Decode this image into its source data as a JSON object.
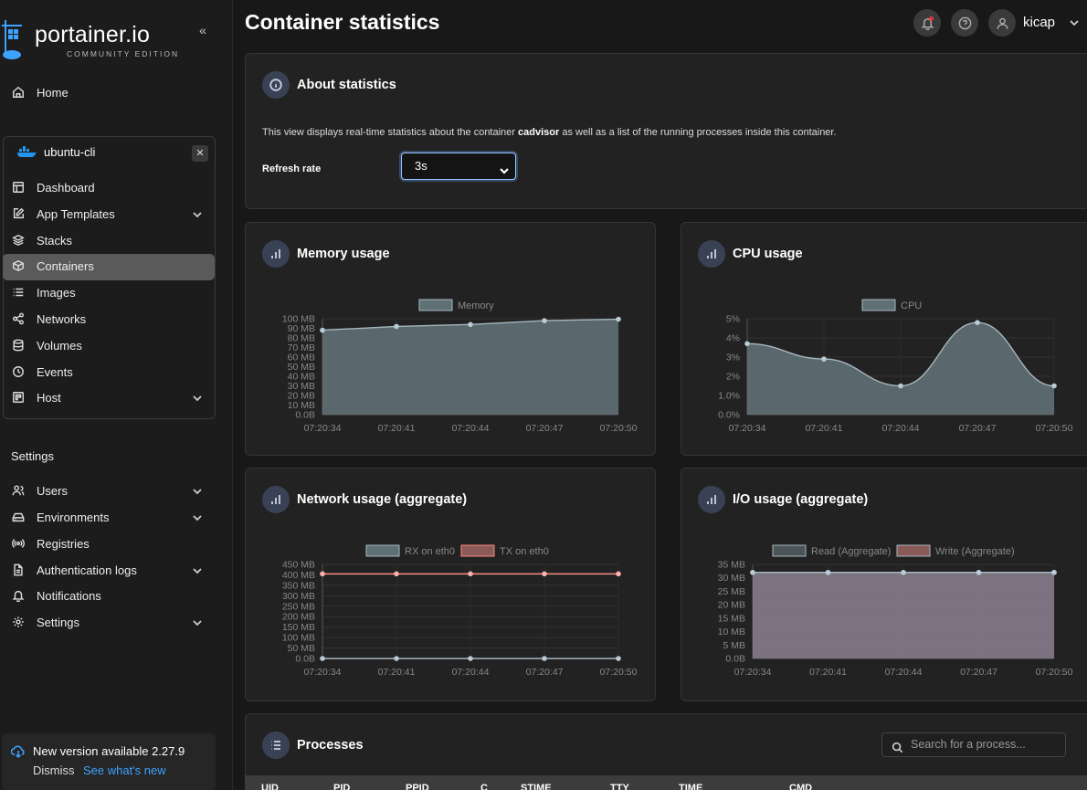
{
  "sidebar": {
    "logo_text": "portainer.io",
    "logo_sub": "COMMUNITY EDITION",
    "home_label": "Home",
    "env_name": "ubuntu-cli",
    "env_items": [
      {
        "label": "Dashboard",
        "icon": "dashboard-icon"
      },
      {
        "label": "App Templates",
        "icon": "edit-icon",
        "expandable": true
      },
      {
        "label": "Stacks",
        "icon": "layers-icon"
      },
      {
        "label": "Containers",
        "icon": "cube-icon",
        "active": true
      },
      {
        "label": "Images",
        "icon": "list-icon"
      },
      {
        "label": "Networks",
        "icon": "share-icon"
      },
      {
        "label": "Volumes",
        "icon": "database-icon"
      },
      {
        "label": "Events",
        "icon": "clock-icon"
      },
      {
        "label": "Host",
        "icon": "grid-icon",
        "expandable": true
      }
    ],
    "settings_heading": "Settings",
    "settings_items": [
      {
        "label": "Users",
        "icon": "users-icon",
        "expandable": true
      },
      {
        "label": "Environments",
        "icon": "hdd-icon",
        "expandable": true
      },
      {
        "label": "Registries",
        "icon": "radio-icon"
      },
      {
        "label": "Authentication logs",
        "icon": "file-icon",
        "expandable": true
      },
      {
        "label": "Notifications",
        "icon": "bell-icon"
      },
      {
        "label": "Settings",
        "icon": "gear-icon",
        "expandable": true
      }
    ],
    "update": {
      "title": "New version available 2.27.9",
      "dismiss": "Dismiss",
      "link": "See what's new"
    }
  },
  "header": {
    "title": "Container statistics",
    "user": "kicap"
  },
  "about": {
    "title": "About statistics",
    "text_before": "This view displays real-time statistics about the container ",
    "container": "cadvisor",
    "text_after": " as well as a list of the running processes inside this container.",
    "refresh_label": "Refresh rate",
    "refresh_value": "3s"
  },
  "colors": {
    "rx_line": "#a7b6bf",
    "tx_line": "#ff8a80",
    "fill": "#5b6a70"
  },
  "chart_data": [
    {
      "type": "area",
      "title": "Memory usage",
      "x": [
        "07:20:34",
        "07:20:41",
        "07:20:44",
        "07:20:47",
        "07:20:50"
      ],
      "series": [
        {
          "name": "Memory",
          "values": [
            88,
            92,
            94,
            98,
            99.5
          ]
        }
      ],
      "yticks": [
        "100 MB",
        "90 MB",
        "80 MB",
        "70 MB",
        "60 MB",
        "50 MB",
        "40 MB",
        "30 MB",
        "20 MB",
        "10 MB",
        "0.0B"
      ],
      "ylim": [
        0,
        100
      ]
    },
    {
      "type": "area",
      "title": "CPU usage",
      "x": [
        "07:20:34",
        "07:20:41",
        "07:20:44",
        "07:20:47",
        "07:20:50"
      ],
      "series": [
        {
          "name": "CPU",
          "values": [
            3.7,
            2.9,
            1.5,
            4.8,
            1.5
          ]
        }
      ],
      "yticks": [
        "5%",
        "4%",
        "3%",
        "2%",
        "1.0%",
        "0.0%"
      ],
      "ylim": [
        0,
        5
      ]
    },
    {
      "type": "line",
      "title": "Network usage (aggregate)",
      "x": [
        "07:20:34",
        "07:20:41",
        "07:20:44",
        "07:20:47",
        "07:20:50"
      ],
      "series": [
        {
          "name": "RX on eth0",
          "values": [
            0,
            0,
            0,
            0,
            0
          ]
        },
        {
          "name": "TX on eth0",
          "values": [
            405,
            405,
            405,
            405,
            405
          ]
        }
      ],
      "yticks": [
        "450 MB",
        "400 MB",
        "350 MB",
        "300 MB",
        "250 MB",
        "200 MB",
        "150 MB",
        "100 MB",
        "50 MB",
        "0.0B"
      ],
      "ylim": [
        0,
        450
      ]
    },
    {
      "type": "area",
      "title": "I/O usage (aggregate)",
      "x": [
        "07:20:34",
        "07:20:41",
        "07:20:44",
        "07:20:47",
        "07:20:50"
      ],
      "series": [
        {
          "name": "Read (Aggregate)",
          "values": [
            32,
            32,
            32,
            32,
            32
          ]
        },
        {
          "name": "Write (Aggregate)",
          "values": [
            32,
            32,
            32,
            32,
            32
          ]
        }
      ],
      "yticks": [
        "35 MB",
        "30 MB",
        "25 MB",
        "20 MB",
        "15 MB",
        "10 MB",
        "5 MB",
        "0.0B"
      ],
      "ylim": [
        0,
        35
      ]
    }
  ],
  "processes": {
    "title": "Processes",
    "search_placeholder": "Search for a process...",
    "columns": [
      "UID",
      "PID",
      "PPID",
      "C",
      "STIME",
      "TTY",
      "TIME",
      "CMD"
    ]
  }
}
